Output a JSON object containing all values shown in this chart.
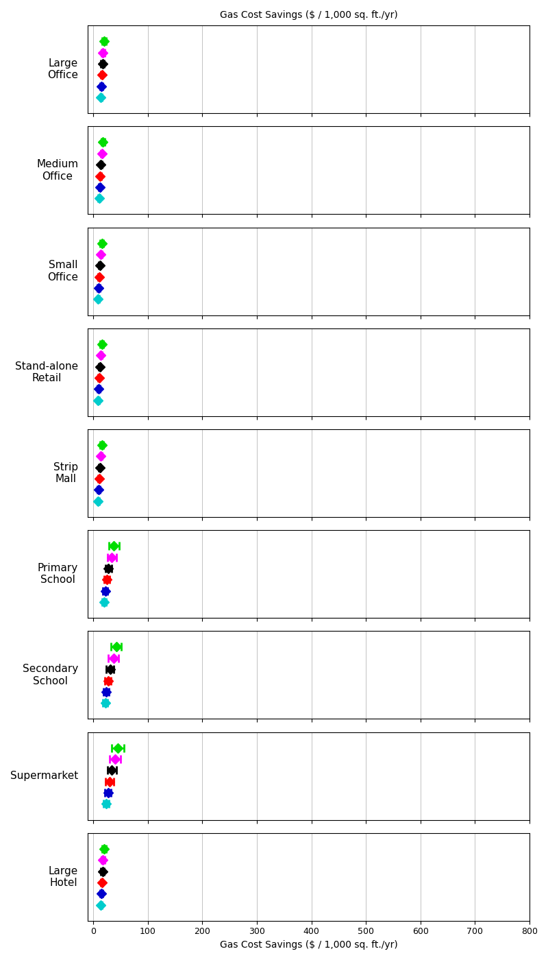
{
  "title_top": "Gas Cost Savings ($ / 1,000 sq. ft./yr)",
  "title_bottom": "Gas Cost Savings ($ / 1,000 sq. ft./yr)",
  "xlim": [
    -10,
    800
  ],
  "xticks": [
    0,
    100,
    200,
    300,
    400,
    500,
    600,
    700,
    800
  ],
  "building_types": [
    "Large\nOffice",
    "Medium\nOffice",
    "Small\nOffice",
    "Stand-alone\nRetail",
    "Strip\nMall",
    "Primary\nSchool",
    "Secondary\nSchool",
    "Supermarket",
    "Large\nHotel"
  ],
  "colors": [
    "#00dd00",
    "#ff00ff",
    "#000000",
    "#ff0000",
    "#0000cc",
    "#00cccc"
  ],
  "refined_data": {
    "Large\nOffice": {
      "c": [
        20,
        18,
        17,
        16,
        15,
        14
      ],
      "el": [
        4,
        3,
        3,
        2,
        2,
        2
      ],
      "eh": [
        4,
        3,
        3,
        2,
        2,
        2
      ]
    },
    "Medium\nOffice": {
      "c": [
        18,
        16,
        14,
        13,
        12,
        11
      ],
      "el": [
        3,
        2,
        2,
        2,
        2,
        2
      ],
      "eh": [
        3,
        2,
        2,
        2,
        2,
        2
      ]
    },
    "Small\nOffice": {
      "c": [
        16,
        14,
        12,
        11,
        10,
        9
      ],
      "el": [
        3,
        2,
        2,
        2,
        2,
        2
      ],
      "eh": [
        3,
        2,
        2,
        2,
        2,
        2
      ]
    },
    "Stand-alone\nRetail": {
      "c": [
        16,
        14,
        12,
        11,
        10,
        9
      ],
      "el": [
        3,
        2,
        2,
        2,
        2,
        2
      ],
      "eh": [
        3,
        2,
        2,
        2,
        2,
        2
      ]
    },
    "Strip\nMall": {
      "c": [
        16,
        14,
        12,
        11,
        10,
        9
      ],
      "el": [
        3,
        2,
        2,
        2,
        2,
        2
      ],
      "eh": [
        3,
        2,
        2,
        2,
        2,
        2
      ]
    },
    "Primary\nSchool": {
      "c": [
        38,
        34,
        28,
        25,
        22,
        20
      ],
      "el": [
        9,
        8,
        6,
        5,
        4,
        4
      ],
      "eh": [
        9,
        8,
        6,
        5,
        4,
        4
      ]
    },
    "Secondary\nSchool": {
      "c": [
        42,
        37,
        31,
        27,
        24,
        22
      ],
      "el": [
        10,
        9,
        7,
        6,
        5,
        4
      ],
      "eh": [
        10,
        9,
        7,
        6,
        5,
        4
      ]
    },
    "Supermarket": {
      "c": [
        45,
        40,
        34,
        30,
        27,
        24
      ],
      "el": [
        11,
        10,
        8,
        7,
        6,
        5
      ],
      "eh": [
        11,
        10,
        8,
        7,
        6,
        5
      ]
    },
    "Large\nHotel": {
      "c": [
        20,
        18,
        17,
        16,
        15,
        14
      ],
      "el": [
        4,
        3,
        3,
        2,
        2,
        2
      ],
      "eh": [
        4,
        3,
        3,
        2,
        2,
        2
      ]
    }
  },
  "figure_bg": "#ffffff",
  "axes_bg": "#ffffff",
  "grid_color": "#aaaaaa",
  "marker_size": 7,
  "capsize": 4,
  "linewidth": 2.0
}
